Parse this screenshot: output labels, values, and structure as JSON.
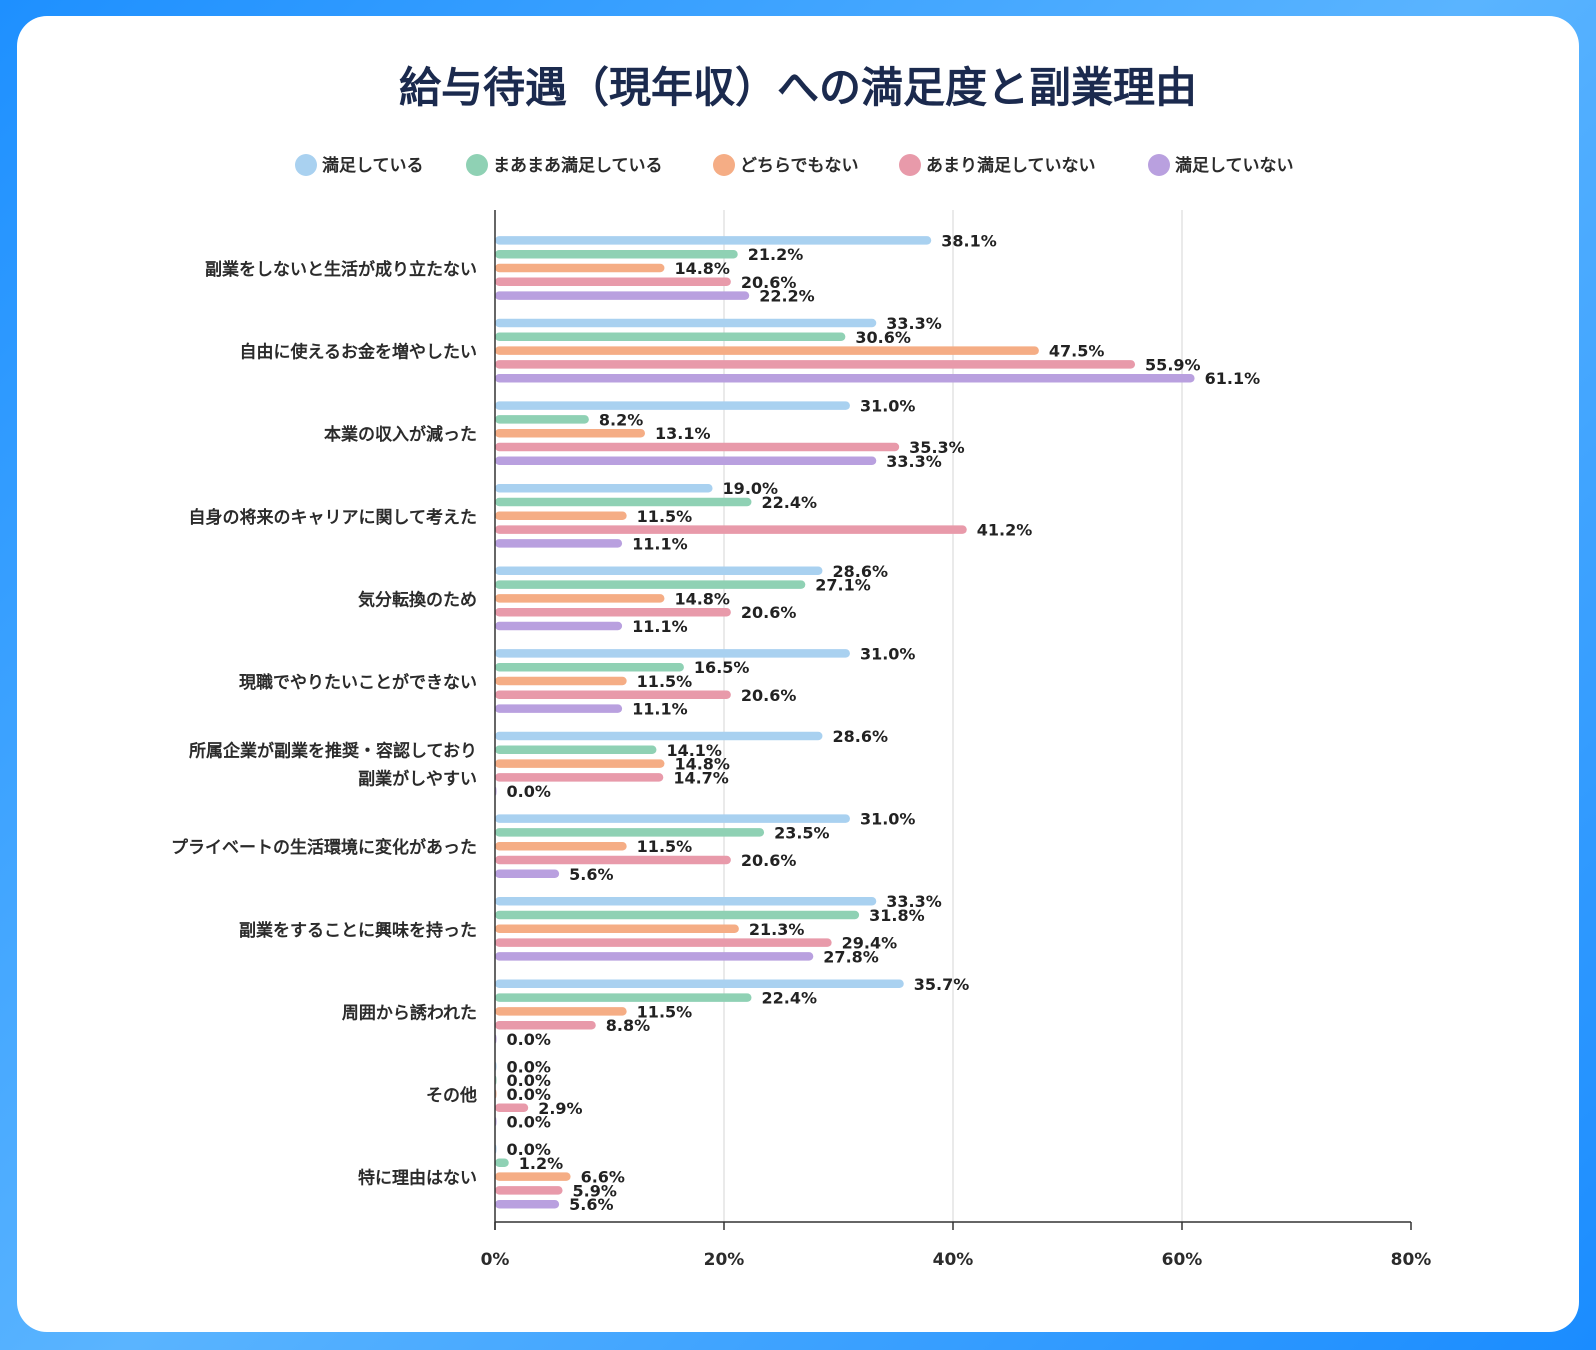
{
  "chart_data": {
    "type": "bar",
    "orientation": "horizontal",
    "title": "給与待遇（現年収）への満足度と副業理由",
    "categories": [
      [
        "副業をしないと生活が成り立たない"
      ],
      [
        "自由に使えるお金を増やしたい"
      ],
      [
        "本業の収入が減った"
      ],
      [
        "自身の将来のキャリアに関して考えた"
      ],
      [
        "気分転換のため"
      ],
      [
        "現職でやりたいことができない"
      ],
      [
        "所属企業が副業を推奨・容認しており",
        "副業がしやすい"
      ],
      [
        "プライベートの生活環境に変化があった"
      ],
      [
        "副業をすることに興味を持った"
      ],
      [
        "周囲から誘われた"
      ],
      [
        "その他"
      ],
      [
        "特に理由はない"
      ]
    ],
    "series": [
      {
        "name": "満足している",
        "color": "#a9d1f0",
        "values": [
          38.1,
          33.3,
          31.0,
          19.0,
          28.6,
          31.0,
          28.6,
          31.0,
          33.3,
          35.7,
          0.0,
          0.0
        ]
      },
      {
        "name": "まあまあ満足している",
        "color": "#8fd1b4",
        "values": [
          21.2,
          30.6,
          8.2,
          22.4,
          27.1,
          16.5,
          14.1,
          23.5,
          31.8,
          22.4,
          0.0,
          1.2
        ]
      },
      {
        "name": "どちらでもない",
        "color": "#f5ad85",
        "values": [
          14.8,
          47.5,
          13.1,
          11.5,
          14.8,
          11.5,
          14.8,
          11.5,
          21.3,
          11.5,
          0.0,
          6.6
        ]
      },
      {
        "name": "あまり満足していない",
        "color": "#e89aaa",
        "values": [
          20.6,
          55.9,
          35.3,
          41.2,
          20.6,
          20.6,
          14.7,
          20.6,
          29.4,
          8.8,
          2.9,
          5.9
        ]
      },
      {
        "name": "満足していない",
        "color": "#b9a0df",
        "values": [
          22.2,
          61.1,
          33.3,
          11.1,
          11.1,
          11.1,
          0.0,
          5.6,
          27.8,
          0.0,
          0.0,
          5.6
        ]
      }
    ],
    "value_suffix": "%",
    "xlim": [
      0,
      80
    ],
    "xticks": [
      "0%",
      "20%",
      "40%",
      "60%",
      "80%"
    ],
    "grid": true,
    "legend_position": "top"
  }
}
